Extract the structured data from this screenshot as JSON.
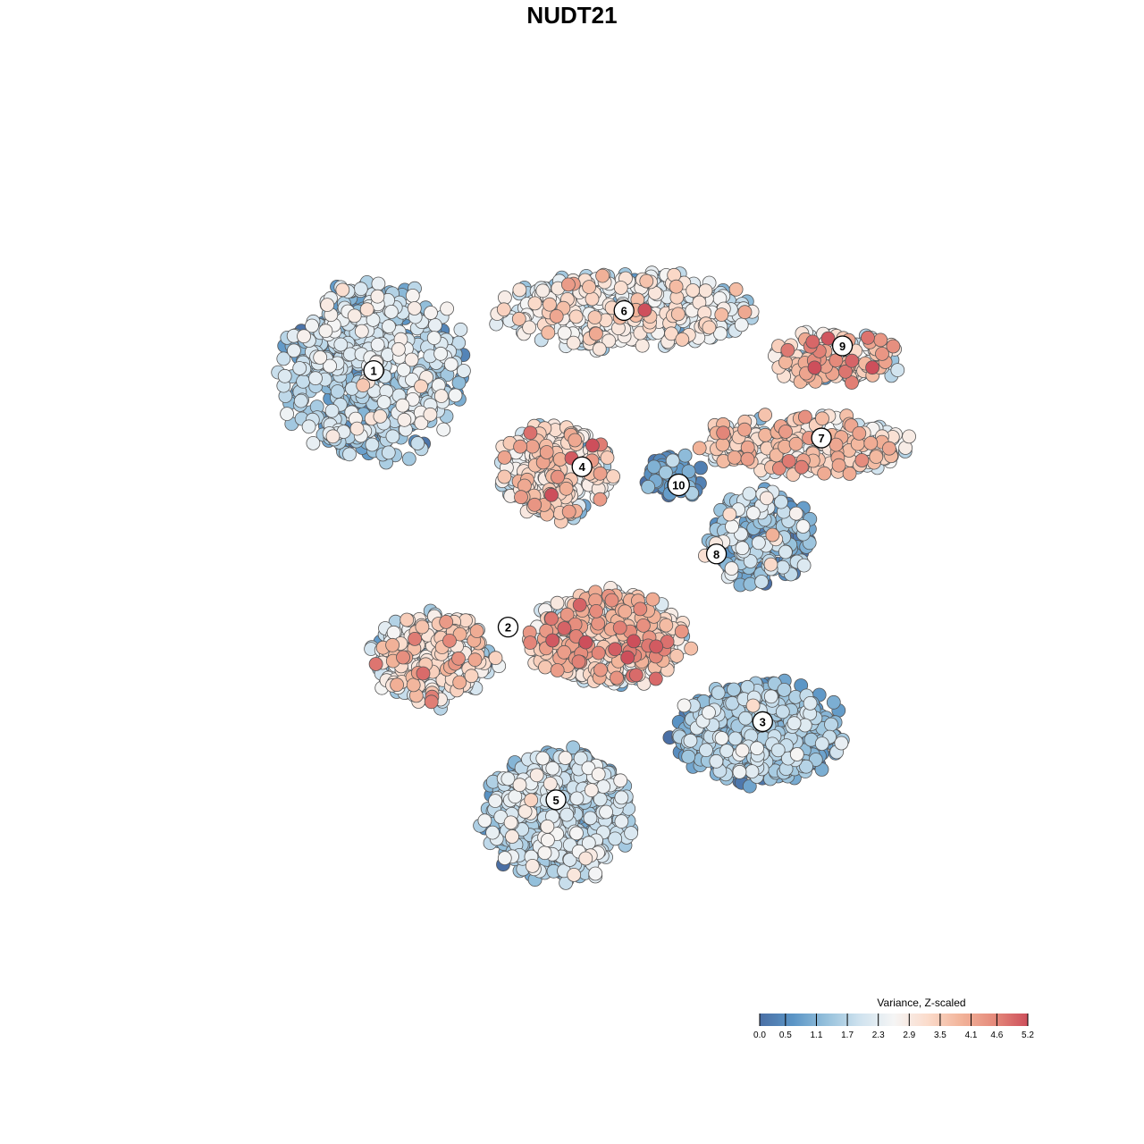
{
  "chart_data": {
    "type": "scatter",
    "title": "NUDT21",
    "xlabel": "",
    "ylabel": "",
    "grid": false,
    "axes_visible": false,
    "legend": {
      "title": "Variance, Z-scaled",
      "placement": "bottom-right",
      "range": [
        0.0,
        5.2
      ],
      "ticks": [
        "0.0",
        "0.5",
        "1.1",
        "1.7",
        "2.3",
        "2.9",
        "3.5",
        "4.1",
        "4.6",
        "5.2"
      ],
      "palette": [
        "#4a6fa5",
        "#5b95c6",
        "#96c1dc",
        "#d0e3ef",
        "#f5f5f5",
        "#fbdccc",
        "#f2b49a",
        "#e58a7b",
        "#cd4f5b"
      ]
    },
    "clusters": [
      {
        "id": "1",
        "x": 0.232,
        "y": 0.743,
        "spread": [
          0.105,
          0.105
        ],
        "n": 620,
        "mean": 1.6,
        "sd": 0.7
      },
      {
        "id": "6",
        "x": 0.53,
        "y": 0.818,
        "spread": [
          0.145,
          0.045
        ],
        "n": 460,
        "mean": 2.2,
        "sd": 0.8
      },
      {
        "id": "4",
        "x": 0.448,
        "y": 0.622,
        "spread": [
          0.065,
          0.055
        ],
        "n": 300,
        "mean": 2.6,
        "sd": 0.9
      },
      {
        "id": "10",
        "x": 0.59,
        "y": 0.614,
        "spread": [
          0.032,
          0.028
        ],
        "n": 60,
        "mean": 0.6,
        "sd": 0.5
      },
      {
        "id": "9",
        "x": 0.78,
        "y": 0.76,
        "spread": [
          0.075,
          0.032
        ],
        "n": 160,
        "mean": 3.2,
        "sd": 0.9
      },
      {
        "id": "7",
        "x": 0.745,
        "y": 0.655,
        "spread": [
          0.12,
          0.035
        ],
        "n": 240,
        "mean": 3.0,
        "sd": 0.8
      },
      {
        "id": "8",
        "x": 0.69,
        "y": 0.54,
        "spread": [
          0.06,
          0.055
        ],
        "n": 230,
        "mean": 1.1,
        "sd": 0.9
      },
      {
        "id": "2",
        "x": 0.305,
        "y": 0.395,
        "spread": [
          0.07,
          0.055
        ],
        "n": 260,
        "mean": 2.6,
        "sd": 0.9
      },
      {
        "id": "mid",
        "x": 0.51,
        "y": 0.42,
        "spread": [
          0.09,
          0.055
        ],
        "n": 420,
        "mean": 3.1,
        "sd": 0.9
      },
      {
        "id": "3",
        "x": 0.69,
        "y": 0.305,
        "spread": [
          0.095,
          0.06
        ],
        "n": 560,
        "mean": 1.1,
        "sd": 0.6
      },
      {
        "id": "5",
        "x": 0.45,
        "y": 0.205,
        "spread": [
          0.085,
          0.075
        ],
        "n": 640,
        "mean": 1.5,
        "sd": 0.6
      }
    ],
    "cluster_labels": [
      {
        "text": "1",
        "x": 0.232,
        "y": 0.745
      },
      {
        "text": "6",
        "x": 0.53,
        "y": 0.818
      },
      {
        "text": "9",
        "x": 0.79,
        "y": 0.775
      },
      {
        "text": "7",
        "x": 0.765,
        "y": 0.663
      },
      {
        "text": "4",
        "x": 0.48,
        "y": 0.628
      },
      {
        "text": "10",
        "x": 0.595,
        "y": 0.606
      },
      {
        "text": "8",
        "x": 0.64,
        "y": 0.522
      },
      {
        "text": "2",
        "x": 0.392,
        "y": 0.433
      },
      {
        "text": "3",
        "x": 0.695,
        "y": 0.318
      },
      {
        "text": "5",
        "x": 0.449,
        "y": 0.223
      }
    ]
  }
}
